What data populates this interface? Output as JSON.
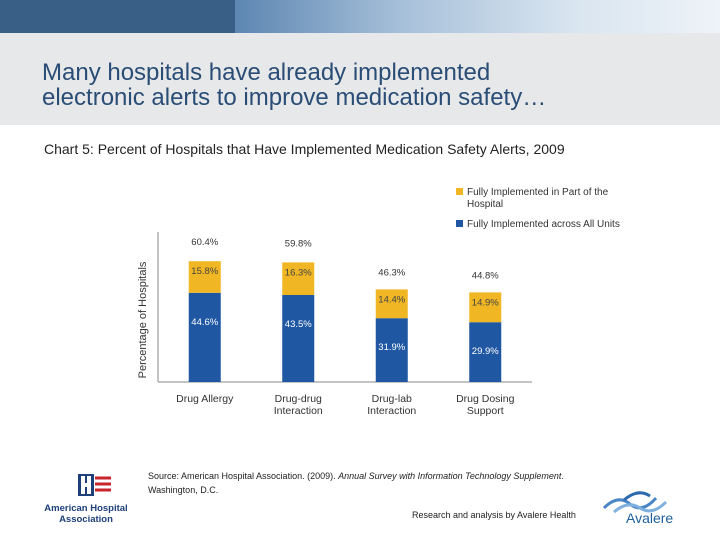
{
  "slide": {
    "title_line1": "Many hospitals have already implemented",
    "title_line2": "electronic alerts to improve medication safety…",
    "chart_caption": "Chart 5: Percent of Hospitals that Have Implemented Medication Safety Alerts, 2009"
  },
  "chart_data": {
    "type": "bar",
    "stacked": true,
    "categories": [
      "Drug Allergy",
      "Drug-drug Interaction",
      "Drug-lab Interaction",
      "Drug Dosing Support"
    ],
    "category_lines": [
      [
        "Drug Allergy"
      ],
      [
        "Drug-drug",
        "Interaction"
      ],
      [
        "Drug-lab",
        "Interaction"
      ],
      [
        "Drug Dosing",
        "Support"
      ]
    ],
    "series": [
      {
        "name": "Fully Implemented across All Units",
        "values": [
          44.6,
          43.5,
          31.9,
          29.9
        ],
        "labels": [
          "44.6%",
          "43.5%",
          "31.9%",
          "29.9%"
        ],
        "color": "#1f57a3"
      },
      {
        "name": "Fully Implemented in Part of the Hospital",
        "values": [
          15.8,
          16.3,
          14.4,
          14.9
        ],
        "labels": [
          "15.8%",
          "16.3%",
          "14.4%",
          "14.9%"
        ],
        "color": "#f0b624"
      }
    ],
    "totals": [
      60.4,
      59.8,
      46.3,
      44.8
    ],
    "total_labels": [
      "60.4%",
      "59.8%",
      "46.3%",
      "44.8%"
    ],
    "legend_lines": [
      [
        "Fully Implemented in Part of the",
        "Hospital"
      ],
      [
        "Fully Implemented across All Units"
      ]
    ],
    "ylabel": "Percentage of Hospitals",
    "xlabel": "",
    "ylim": [
      0,
      70
    ],
    "grid": false,
    "legend_position": "top-right"
  },
  "source": {
    "prefix": "Source: American Hospital Association. (2009). ",
    "italic": "Annual Survey with Information Technology Supplement",
    "suffix": ". Washington, D.C."
  },
  "footer": {
    "credit": "Research and analysis by Avalere Health",
    "aha_logo_line1": "American Hospital",
    "aha_logo_line2": "Association",
    "avalere_logo": "Avalere"
  },
  "colors": {
    "title": "#2a4d76",
    "series_all_units": "#1f57a3",
    "series_part_hospital": "#f0b624",
    "label_on_blue": "#ffffff",
    "label_on_yellow": "#444444"
  }
}
